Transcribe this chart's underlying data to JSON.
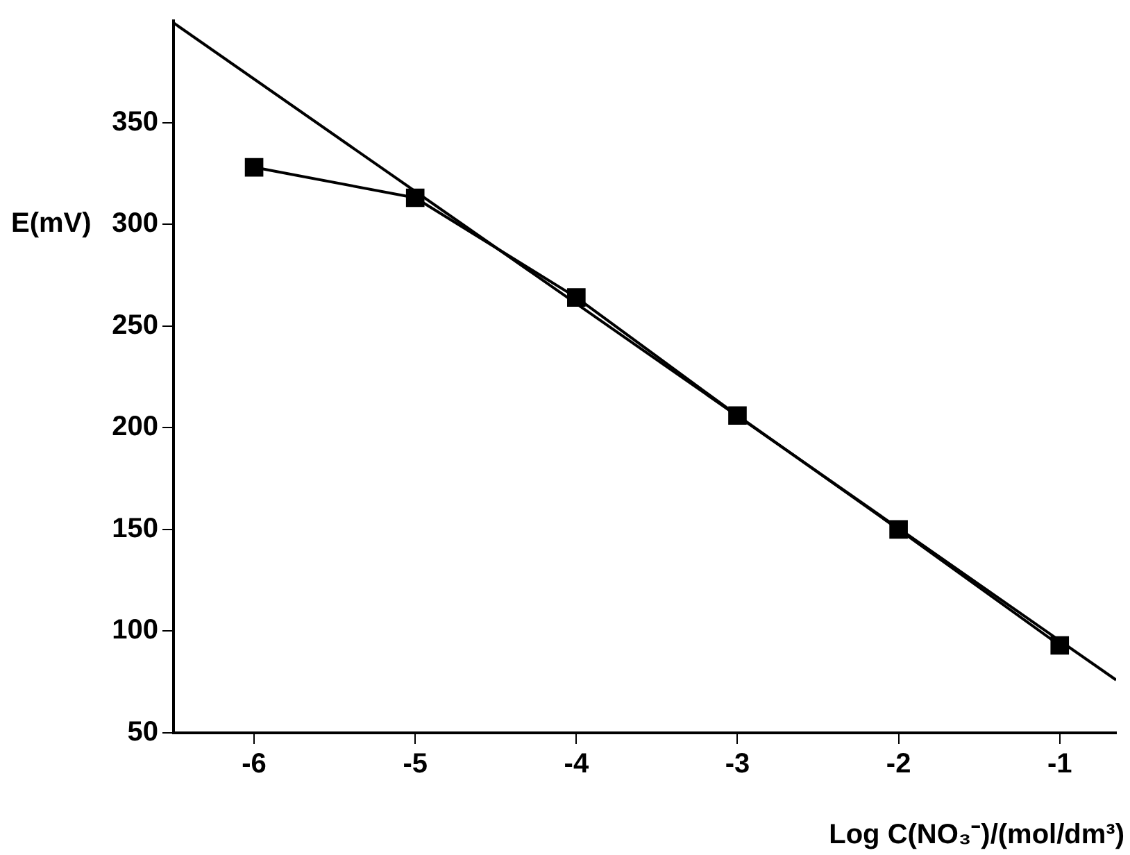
{
  "chart_data": {
    "type": "scatter",
    "xlabel": "Log C(NO₃⁻)/(mol/dm³)",
    "ylabel": "E(mV)",
    "xlim": [
      -6.5,
      -0.65
    ],
    "xticks": [
      -6,
      -5,
      -4,
      -3,
      -2,
      -1
    ],
    "ylim": [
      50,
      400
    ],
    "yticks": [
      50,
      100,
      150,
      200,
      250,
      300,
      350
    ],
    "grid": false,
    "legend": false,
    "series": [
      {
        "type": "line",
        "color": "#000000",
        "x": [
          -6,
          -5,
          -4,
          -3,
          -2,
          -1
        ],
        "values": [
          328,
          313,
          264,
          206,
          150,
          93
        ],
        "marker": "square",
        "line_style": "solid"
      },
      {
        "type": "line",
        "color": "#000000",
        "x": [
          -6.5,
          -0.65
        ],
        "values": [
          399,
          76
        ],
        "marker": "none",
        "line_style": "solid"
      }
    ]
  }
}
